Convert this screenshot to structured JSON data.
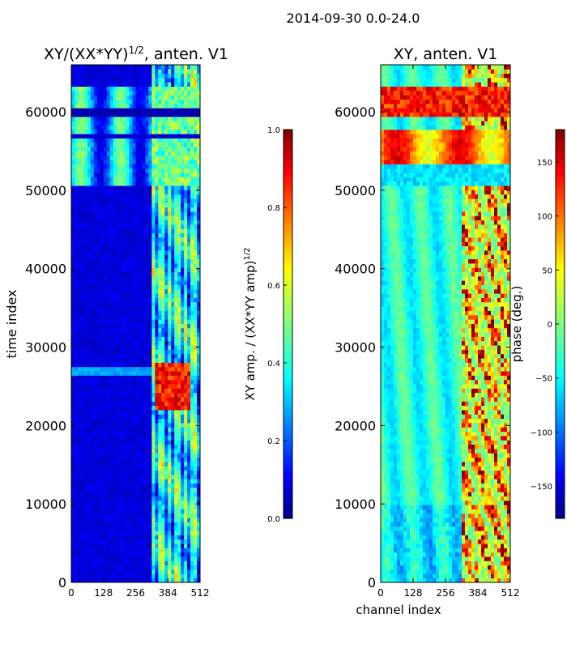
{
  "figure_title": "2014-09-30 0.0-24.0",
  "chart_data": [
    {
      "type": "heatmap",
      "title_main": "XY/(XX*YY)",
      "title_sup": "1/2",
      "title_tail": ", anten. V1",
      "xlabel": "",
      "ylabel": "time index",
      "xlim": [
        0,
        512
      ],
      "ylim": [
        0,
        66000
      ],
      "xticks": [
        0,
        128,
        256,
        384,
        512
      ],
      "yticks": [
        0,
        10000,
        20000,
        30000,
        40000,
        50000,
        60000
      ],
      "colorbar": {
        "label_main": "XY amp. / (XX*YY amp)",
        "label_sup": "1/2",
        "range": [
          0.0,
          1.0
        ],
        "ticks": [
          0.0,
          0.2,
          0.4,
          0.6,
          0.8,
          1.0
        ],
        "tick_labels": [
          "0.0",
          "0.2",
          "0.4",
          "0.6",
          "0.8",
          "1.0"
        ]
      }
    },
    {
      "type": "heatmap",
      "title": "XY, anten. V1",
      "xlabel": "channel index",
      "ylabel": "",
      "xlim": [
        0,
        512
      ],
      "ylim": [
        0,
        66000
      ],
      "xticks": [
        0,
        128,
        256,
        384,
        512
      ],
      "yticks": [
        0,
        10000,
        20000,
        30000,
        40000,
        50000,
        60000
      ],
      "colorbar": {
        "label": "phase (deg.)",
        "range": [
          -180,
          180
        ],
        "ticks": [
          -150,
          -100,
          -50,
          0,
          50,
          100,
          150
        ],
        "tick_labels": [
          "−150",
          "−100",
          "−50",
          "0",
          "50",
          "100",
          "150"
        ]
      }
    }
  ],
  "colors": {
    "jet": [
      "#00007f",
      "#0000ff",
      "#007fff",
      "#00ffff",
      "#7fff7f",
      "#ffff00",
      "#ff7f00",
      "#ff0000",
      "#7f0000"
    ]
  }
}
